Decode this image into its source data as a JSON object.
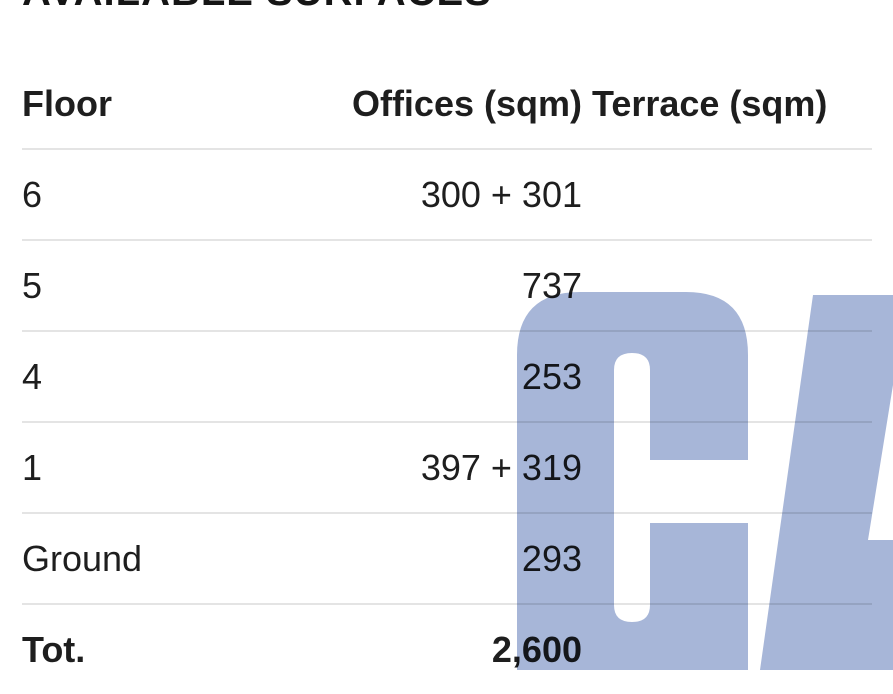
{
  "title": "AVAILABLE SURFACES",
  "table": {
    "headers": [
      "Floor",
      "Offices (sqm)",
      "Terrace (sqm)"
    ],
    "rows": [
      {
        "floor": "6",
        "offices": "300 + 301",
        "terrace": ""
      },
      {
        "floor": "5",
        "offices": "737",
        "terrace": ""
      },
      {
        "floor": "4",
        "offices": "253",
        "terrace": ""
      },
      {
        "floor": "1",
        "offices": "397 + 319",
        "terrace": ""
      },
      {
        "floor": "Ground",
        "offices": "293",
        "terrace": ""
      }
    ],
    "total": {
      "floor": "Tot.",
      "offices": "2,600",
      "terrace": ""
    }
  },
  "watermark": {
    "text": "CA",
    "color": "#a7b6d8"
  }
}
